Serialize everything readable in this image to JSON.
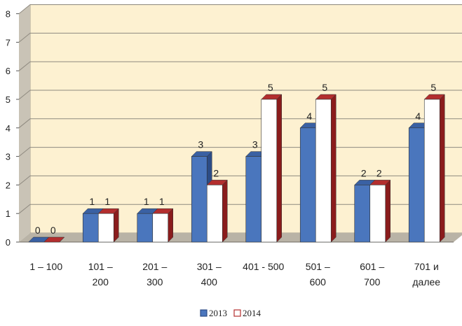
{
  "chart_data": {
    "type": "bar",
    "title": "",
    "xlabel": "",
    "ylabel": "",
    "ylim": [
      0,
      8
    ],
    "yticks": [
      "0",
      "1",
      "2",
      "3",
      "4",
      "5",
      "6",
      "7",
      "8"
    ],
    "grid": true,
    "legend_position": "bottom",
    "categories": [
      [
        "1 – 100"
      ],
      [
        "101 –",
        "200"
      ],
      [
        "201 –",
        "300"
      ],
      [
        "301 –",
        "400"
      ],
      [
        "401 - 500"
      ],
      [
        "501 –",
        "600"
      ],
      [
        "601 –",
        "700"
      ],
      [
        "701 и",
        "далее"
      ]
    ],
    "series": [
      {
        "name": "2013",
        "values": [
          0,
          1,
          1,
          3,
          3,
          4,
          2,
          4
        ],
        "labels": [
          "0",
          "1",
          "1",
          "3",
          "3",
          "4",
          "2",
          "4"
        ]
      },
      {
        "name": "2014",
        "values": [
          0,
          1,
          1,
          2,
          5,
          5,
          2,
          5
        ],
        "labels": [
          "0",
          "1",
          "1",
          "2",
          "5",
          "5",
          "2",
          "5"
        ]
      }
    ],
    "colors": {
      "s2013_front": "#4a76bd",
      "s2013_top": "#3a61a3",
      "s2013_side": "#2c4c86",
      "s2014_front": "#ffffff",
      "s2014_top": "#b32e2e",
      "s2014_side": "#8a1c1c",
      "plot_bg": "#fdf1d1",
      "wall": "#c9c3b6",
      "floor": "#b9b3a6",
      "grid": "#8f8a80"
    }
  }
}
